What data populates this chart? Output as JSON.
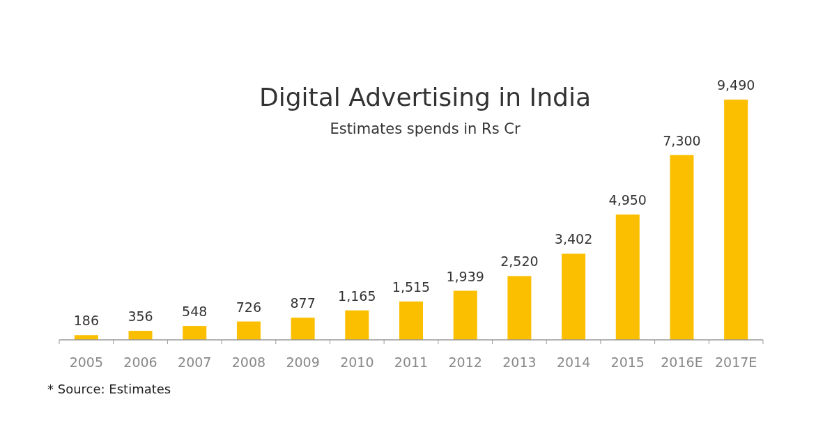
{
  "chart_data": {
    "type": "bar",
    "title": "Digital Advertising in India",
    "subtitle": "Estimates spends in Rs Cr",
    "categories": [
      "2005",
      "2006",
      "2007",
      "2008",
      "2009",
      "2010",
      "2011",
      "2012",
      "2013",
      "2014",
      "2015",
      "2016E",
      "2017E"
    ],
    "values": [
      186,
      356,
      548,
      726,
      877,
      1165,
      1515,
      1939,
      2520,
      3402,
      4950,
      7300,
      9490
    ],
    "value_labels": [
      "186",
      "356",
      "548",
      "726",
      "877",
      "1,165",
      "1,515",
      "1,939",
      "2,520",
      "3,402",
      "4,950",
      "7,300",
      "9,490"
    ],
    "color": "#fbbf00",
    "annotations": [
      "* Source: Estimates"
    ]
  }
}
